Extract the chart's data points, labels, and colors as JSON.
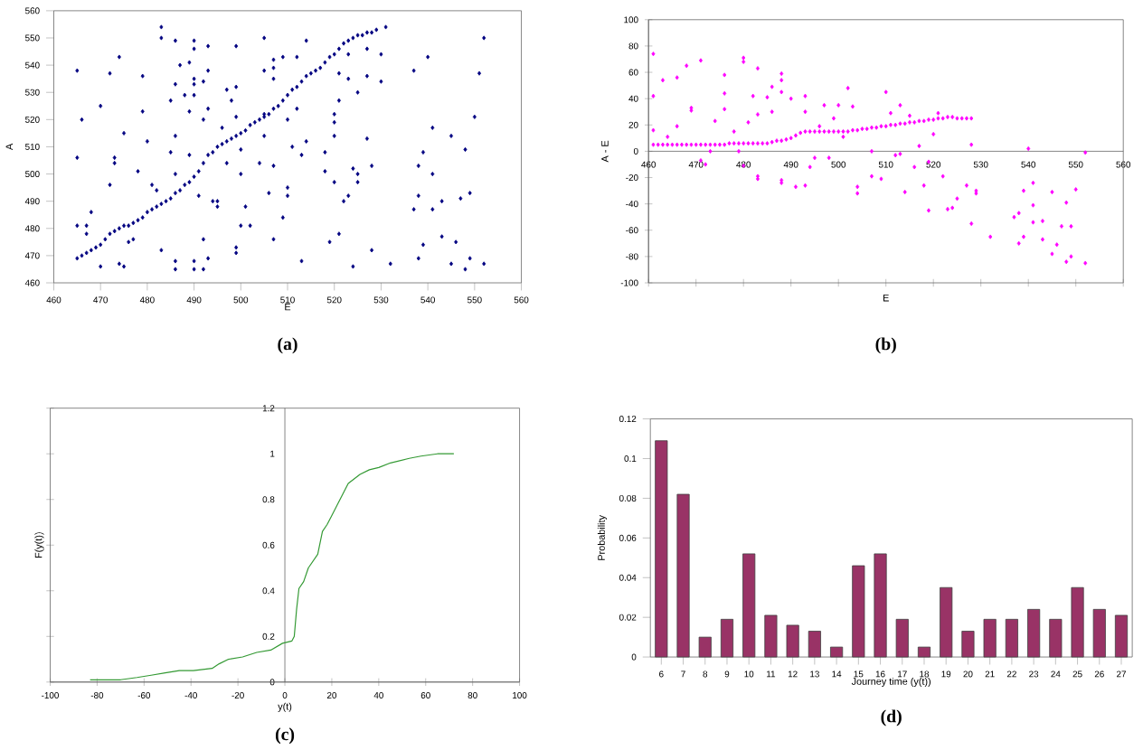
{
  "chart_data": [
    {
      "type": "scatter",
      "xlabel": "E",
      "ylabel": "A",
      "annotations": [
        "(a)"
      ],
      "color": "#000080",
      "marker": "diamond",
      "xlim": [
        460,
        560
      ],
      "xticks": [
        460,
        470,
        480,
        490,
        500,
        510,
        520,
        530,
        540,
        550,
        560
      ],
      "ylim": [
        460,
        560
      ],
      "yticks": [
        460,
        470,
        480,
        490,
        500,
        510,
        520,
        530,
        540,
        550,
        560
      ],
      "x": [
        465,
        466,
        467,
        468,
        469,
        470,
        471,
        472,
        473,
        474,
        475,
        476,
        477,
        478,
        479,
        480,
        481,
        482,
        483,
        484,
        485,
        486,
        487,
        488,
        489,
        490,
        491,
        492,
        493,
        494,
        495,
        496,
        497,
        498,
        499,
        500,
        501,
        502,
        503,
        504,
        505,
        506,
        507,
        508,
        509,
        510,
        511,
        512,
        513,
        514,
        515,
        516,
        517,
        518,
        519,
        520,
        521,
        522,
        523,
        524,
        525,
        526,
        527,
        528,
        529,
        465,
        465,
        465,
        466,
        467,
        467,
        468,
        470,
        470,
        472,
        472,
        473,
        473,
        474,
        474,
        475,
        475,
        476,
        477,
        478,
        479,
        479,
        480,
        481,
        482,
        483,
        483,
        483,
        485,
        485,
        486,
        486,
        486,
        486,
        486,
        486,
        487,
        488,
        489,
        489,
        489,
        490,
        490,
        490,
        490,
        490,
        490,
        490,
        491,
        492,
        492,
        492,
        492,
        493,
        493,
        493,
        493,
        494,
        495,
        495,
        496,
        497,
        497,
        498,
        499,
        499,
        499,
        499,
        499,
        500,
        500,
        500,
        501,
        502,
        504,
        505,
        505,
        505,
        505,
        506,
        507,
        507,
        507,
        507,
        507,
        509,
        509,
        510,
        510,
        510,
        511,
        512,
        512,
        513,
        513,
        514,
        514,
        518,
        518,
        519,
        520,
        520,
        520,
        520,
        521,
        521,
        521,
        522,
        523,
        523,
        523,
        524,
        524,
        525,
        525,
        525,
        527,
        527,
        527,
        528,
        528,
        530,
        530,
        531,
        532,
        537,
        537,
        538,
        538,
        538,
        539,
        539,
        540,
        541,
        541,
        541,
        543,
        543,
        545,
        545,
        546,
        547,
        548,
        548,
        549,
        549,
        550,
        551,
        552,
        552
      ],
      "values": [
        469,
        470,
        471,
        472,
        473,
        474,
        476,
        478,
        479,
        480,
        481,
        481,
        482,
        483,
        484,
        486,
        487,
        488,
        489,
        490,
        491,
        493,
        494,
        496,
        497,
        499,
        501,
        504,
        507,
        508,
        510,
        511,
        512,
        513,
        514,
        515,
        516,
        518,
        519,
        520,
        521,
        522,
        524,
        525,
        527,
        529,
        531,
        532,
        534,
        536,
        537,
        538,
        539,
        541,
        543,
        544,
        546,
        548,
        549,
        550,
        551,
        551,
        552,
        552,
        553,
        538,
        506,
        481,
        520,
        481,
        478,
        486,
        525,
        466,
        537,
        496,
        506,
        504,
        543,
        467,
        515,
        466,
        475,
        476,
        501,
        536,
        523,
        512,
        496,
        494,
        554,
        550,
        472,
        527,
        508,
        533,
        549,
        514,
        500,
        468,
        465,
        540,
        529,
        541,
        523,
        507,
        549,
        546,
        535,
        533,
        529,
        468,
        465,
        492,
        534,
        520,
        476,
        465,
        547,
        538,
        524,
        469,
        490,
        490,
        488,
        517,
        531,
        504,
        527,
        547,
        532,
        521,
        471,
        473,
        509,
        500,
        481,
        488,
        481,
        504,
        550,
        538,
        514,
        522,
        493,
        542,
        539,
        535,
        503,
        476,
        543,
        484,
        520,
        495,
        492,
        510,
        543,
        524,
        507,
        468,
        549,
        512,
        501,
        508,
        475,
        522,
        519,
        514,
        497,
        537,
        527,
        478,
        490,
        544,
        535,
        492,
        502,
        466,
        530,
        500,
        497,
        546,
        536,
        513,
        503,
        472,
        544,
        534,
        554,
        467,
        538,
        487,
        503,
        492,
        469,
        508,
        474,
        543,
        517,
        500,
        487,
        490,
        477,
        514,
        467,
        475,
        491,
        509,
        465,
        493,
        469,
        521,
        537,
        550,
        467
      ]
    },
    {
      "type": "scatter",
      "xlabel": "E",
      "ylabel": "A - E",
      "annotations": [
        "(b)"
      ],
      "color": "#ff00ff",
      "marker": "diamond",
      "xlim": [
        460,
        560
      ],
      "xticks": [
        460,
        470,
        480,
        490,
        500,
        510,
        520,
        530,
        540,
        550,
        560
      ],
      "ylim": [
        -100,
        100
      ],
      "yticks": [
        -100,
        -80,
        -60,
        -40,
        -20,
        0,
        20,
        40,
        60,
        80,
        100
      ],
      "x": [
        461,
        462,
        463,
        464,
        465,
        466,
        467,
        468,
        469,
        470,
        471,
        472,
        473,
        474,
        475,
        476,
        477,
        478,
        479,
        480,
        481,
        482,
        483,
        484,
        485,
        486,
        487,
        488,
        489,
        490,
        491,
        492,
        493,
        494,
        495,
        496,
        497,
        498,
        499,
        500,
        501,
        502,
        503,
        504,
        505,
        506,
        507,
        508,
        509,
        510,
        511,
        512,
        513,
        514,
        515,
        516,
        517,
        518,
        519,
        520,
        521,
        522,
        523,
        524,
        525,
        526,
        527,
        528,
        461,
        461,
        461,
        463,
        464,
        466,
        466,
        468,
        469,
        469,
        471,
        471,
        472,
        473,
        474,
        476,
        476,
        476,
        478,
        479,
        480,
        480,
        480,
        481,
        482,
        483,
        483,
        483,
        483,
        485,
        486,
        486,
        488,
        488,
        488,
        488,
        488,
        490,
        491,
        493,
        493,
        493,
        494,
        495,
        496,
        497,
        498,
        499,
        500,
        501,
        502,
        503,
        504,
        504,
        507,
        507,
        509,
        510,
        511,
        512,
        513,
        513,
        514,
        515,
        516,
        517,
        518,
        519,
        519,
        520,
        521,
        522,
        523,
        524,
        525,
        527,
        528,
        529,
        529,
        532,
        528,
        537,
        538,
        538,
        539,
        539,
        540,
        541,
        541,
        541,
        543,
        543,
        545,
        545,
        546,
        547,
        548,
        548,
        549,
        549,
        550,
        552,
        552
      ],
      "values": [
        5,
        5,
        5,
        5,
        5,
        5,
        5,
        5,
        5,
        5,
        5,
        5,
        5,
        5,
        5,
        5,
        6,
        6,
        6,
        6,
        6,
        6,
        6,
        6,
        6,
        7,
        8,
        8,
        9,
        10,
        12,
        14,
        15,
        15,
        15,
        15,
        15,
        15,
        15,
        15,
        15,
        15,
        16,
        16,
        17,
        17,
        18,
        18,
        19,
        19,
        20,
        20,
        21,
        21,
        22,
        22,
        23,
        23,
        24,
        24,
        25,
        25,
        26,
        26,
        25,
        25,
        25,
        25,
        74,
        42,
        16,
        54,
        11,
        19,
        56,
        65,
        33,
        31,
        69,
        -7,
        -10,
        0,
        23,
        58,
        44,
        32,
        15,
        0,
        71,
        68,
        -11,
        22,
        42,
        63,
        -19,
        -21,
        28,
        41,
        30,
        49,
        59,
        54,
        45,
        -22,
        -24,
        40,
        -27,
        42,
        30,
        -26,
        -12,
        -5,
        19,
        35,
        -5,
        25,
        35,
        11,
        48,
        34,
        -27,
        -32,
        -19,
        0,
        -21,
        45,
        29,
        -3,
        -2,
        35,
        -31,
        27,
        -12,
        4,
        -26,
        -45,
        -8,
        13,
        29,
        -19,
        -44,
        -43,
        -36,
        -26,
        5,
        -30,
        -32,
        -65,
        -55,
        -50,
        -47,
        -70,
        -30,
        -65,
        2,
        -24,
        -41,
        -54,
        -53,
        -67,
        -31,
        -78,
        -71,
        -57,
        -39,
        -84,
        -57,
        -80,
        -29,
        -85,
        -1
      ]
    },
    {
      "type": "line",
      "xlabel": "y(t)",
      "ylabel": "F(y(t))",
      "annotations": [
        "(c)"
      ],
      "color": "#339933",
      "xlim": [
        -100,
        100
      ],
      "xticks": [
        -100,
        -80,
        -60,
        -40,
        -20,
        0,
        20,
        40,
        60,
        80,
        100
      ],
      "ylim": [
        0,
        1.2
      ],
      "yticks": [
        0,
        0.2,
        0.4,
        0.6,
        0.8,
        1,
        1.2
      ],
      "x": [
        -83,
        -77,
        -70,
        -63,
        -57,
        -51,
        -45,
        -39,
        -31,
        -28,
        -24,
        -18,
        -12,
        -6,
        -1,
        3,
        4,
        5,
        6,
        8,
        10,
        14,
        16,
        18,
        20,
        23,
        27,
        32,
        36,
        40,
        45,
        53,
        58,
        65,
        72
      ],
      "values": [
        0.01,
        0.01,
        0.01,
        0.02,
        0.03,
        0.04,
        0.05,
        0.05,
        0.06,
        0.08,
        0.1,
        0.11,
        0.13,
        0.14,
        0.17,
        0.18,
        0.2,
        0.32,
        0.41,
        0.44,
        0.5,
        0.56,
        0.66,
        0.69,
        0.73,
        0.79,
        0.87,
        0.91,
        0.93,
        0.94,
        0.96,
        0.98,
        0.99,
        1.0,
        1.0
      ]
    },
    {
      "type": "bar",
      "xlabel": "Journey time (y(t))",
      "ylabel": "Probability",
      "annotations": [
        "(d)"
      ],
      "color": "#993366",
      "categories": [
        "6",
        "7",
        "8",
        "9",
        "10",
        "11",
        "12",
        "13",
        "14",
        "15",
        "16",
        "17",
        "18",
        "19",
        "20",
        "21",
        "22",
        "23",
        "24",
        "25",
        "26",
        "27"
      ],
      "values": [
        0.109,
        0.082,
        0.01,
        0.019,
        0.052,
        0.021,
        0.016,
        0.013,
        0.005,
        0.046,
        0.052,
        0.019,
        0.005,
        0.035,
        0.013,
        0.019,
        0.019,
        0.024,
        0.019,
        0.035,
        0.024,
        0.021
      ],
      "ylim": [
        0,
        0.12
      ],
      "yticks": [
        0,
        0.02,
        0.04,
        0.06,
        0.08,
        0.1,
        0.12
      ]
    }
  ]
}
